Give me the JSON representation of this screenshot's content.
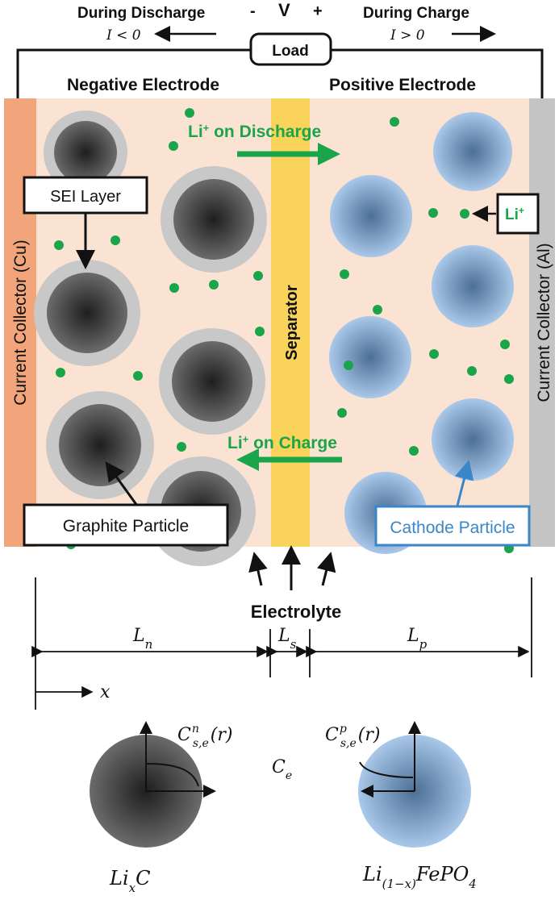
{
  "header": {
    "discharge_label": "During Discharge",
    "charge_label": "During Charge",
    "minus": "-",
    "v": "V",
    "plus": "+",
    "i_lt_0": "I < 0",
    "i_gt_0": "I > 0",
    "load": "Load"
  },
  "electrodes": {
    "negative": "Negative Electrode",
    "positive": "Positive Electrode",
    "collector_left": "Current Collector (Cu)",
    "collector_right": "Current Collector (Al)",
    "separator": "Separator"
  },
  "annotations": {
    "li_discharge_prefix": "Li",
    "li_discharge_suffix": " on Discharge",
    "li_charge_prefix": "Li",
    "li_charge_suffix": " on Charge",
    "sup_plus": "+",
    "sei_layer": "SEI Layer",
    "li_ion": "Li",
    "graphite_particle": "Graphite Particle",
    "cathode_particle": "Cathode Particle",
    "electrolyte": "Electrolyte"
  },
  "dimensions": {
    "ln_base": "L",
    "ln_sub": "n",
    "ls_base": "L",
    "ls_sub": "s",
    "lp_base": "L",
    "lp_sub": "p",
    "x_axis": "x"
  },
  "bottom": {
    "c_n_base": "C",
    "c_n_sup": "n",
    "c_n_sub": "s,e",
    "c_n_arg": "(r)",
    "c_p_base": "C",
    "c_p_sup": "p",
    "c_p_sub": "s,e",
    "c_p_arg": "(r)",
    "c_e_base": "C",
    "c_e_sub": "e",
    "anode_formula_base": "Li",
    "anode_formula_sub": "x",
    "anode_formula_tail": "C",
    "cathode_formula_base": "Li",
    "cathode_formula_sub": "(1−x)",
    "cathode_formula_tail": "FePO",
    "cathode_formula_tail_sub": "4"
  },
  "colors": {
    "cu_collector": "#f2a57a",
    "al_collector": "#c4c4c4",
    "electrolyte_bg": "#fbe3d3",
    "separator": "#f9d35a",
    "lithium": "#1aa54a",
    "cathode": "#8fb4dc",
    "graphite": "#4a4a4a",
    "sei": "#c8c8c8"
  }
}
